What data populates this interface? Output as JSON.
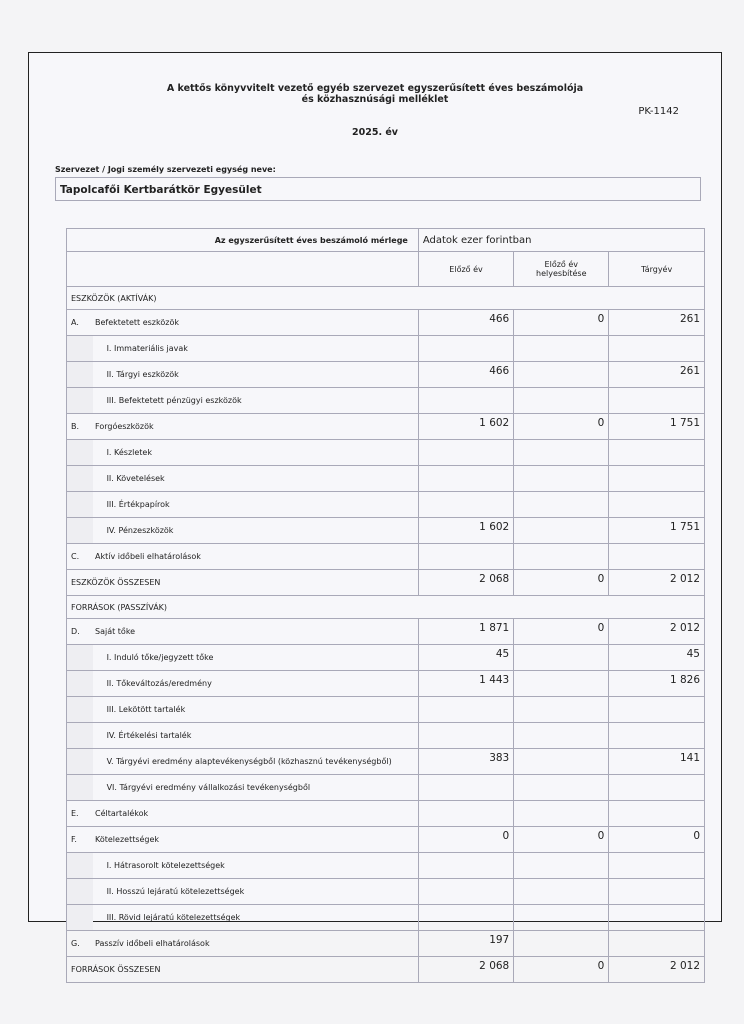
{
  "header": {
    "title_line1": "A kettős könyvvitelt vezető egyéb szervezet egyszerűsített éves beszámolója",
    "title_line2": "és közhasznúsági melléklet",
    "form_code": "PK-1142",
    "year": "2025. év"
  },
  "organization": {
    "label": "Szervezet / Jogi személy szervezeti egység neve:",
    "name": "Tapolcafői Kertbarátkör Egyesület"
  },
  "table": {
    "title": "Az egyszerűsített éves beszámoló mérlege",
    "unit": "Adatok ezer forintban",
    "columns": [
      "Előző év",
      "Előző év helyesbítése",
      "Tárgyév"
    ],
    "rows": [
      {
        "type": "section",
        "label": "ESZKÖZÖK (AKTÍVÁK)"
      },
      {
        "type": "main",
        "code": "A.",
        "label": "Befektetett eszközök",
        "prev": "466",
        "corr": "0",
        "curr": "261"
      },
      {
        "type": "sub",
        "label": "I. Immateriális javak",
        "prev": "",
        "corr": "",
        "curr": ""
      },
      {
        "type": "sub",
        "label": "II. Tárgyi eszközök",
        "prev": "466",
        "corr": "",
        "curr": "261"
      },
      {
        "type": "sub",
        "label": "III. Befektetett pénzügyi eszközök",
        "prev": "",
        "corr": "",
        "curr": ""
      },
      {
        "type": "main",
        "code": "B.",
        "label": "Forgóeszközök",
        "prev": "1 602",
        "corr": "0",
        "curr": "1 751"
      },
      {
        "type": "sub",
        "label": "I. Készletek",
        "prev": "",
        "corr": "",
        "curr": ""
      },
      {
        "type": "sub",
        "label": "II. Követelések",
        "prev": "",
        "corr": "",
        "curr": ""
      },
      {
        "type": "sub",
        "label": "III. Értékpapírok",
        "prev": "",
        "corr": "",
        "curr": ""
      },
      {
        "type": "sub",
        "label": "IV. Pénzeszközök",
        "prev": "1 602",
        "corr": "",
        "curr": "1 751"
      },
      {
        "type": "main",
        "code": "C.",
        "label": "Aktív időbeli elhatárolások",
        "prev": "",
        "corr": "",
        "curr": ""
      },
      {
        "type": "total",
        "label": "ESZKÖZÖK ÖSSZESEN",
        "prev": "2 068",
        "corr": "0",
        "curr": "2 012"
      },
      {
        "type": "section",
        "label": "FORRÁSOK (PASSZÍVÁK)"
      },
      {
        "type": "main",
        "code": "D.",
        "label": "Saját tőke",
        "prev": "1 871",
        "corr": "0",
        "curr": "2 012"
      },
      {
        "type": "sub",
        "label": "I. Induló tőke/jegyzett tőke",
        "prev": "45",
        "corr": "",
        "curr": "45"
      },
      {
        "type": "sub",
        "label": "II. Tőkeváltozás/eredmény",
        "prev": "1 443",
        "corr": "",
        "curr": "1 826"
      },
      {
        "type": "sub",
        "label": "III. Lekötött tartalék",
        "prev": "",
        "corr": "",
        "curr": ""
      },
      {
        "type": "sub",
        "label": "IV. Értékelési tartalék",
        "prev": "",
        "corr": "",
        "curr": ""
      },
      {
        "type": "sub",
        "label": "V. Tárgyévi eredmény alaptevékenységből (közhasznú tevékenységből)",
        "prev": "383",
        "corr": "",
        "curr": "141"
      },
      {
        "type": "sub",
        "label": "VI. Tárgyévi eredmény vállalkozási tevékenységből",
        "prev": "",
        "corr": "",
        "curr": ""
      },
      {
        "type": "main",
        "code": "E.",
        "label": "Céltartalékok",
        "prev": "",
        "corr": "",
        "curr": ""
      },
      {
        "type": "main",
        "code": "F.",
        "label": "Kötelezettségek",
        "prev": "0",
        "corr": "0",
        "curr": "0"
      },
      {
        "type": "sub",
        "label": "I. Hátrasorolt kötelezettségek",
        "prev": "",
        "corr": "",
        "curr": ""
      },
      {
        "type": "sub",
        "label": "II. Hosszú lejáratú kötelezettségek",
        "prev": "",
        "corr": "",
        "curr": ""
      },
      {
        "type": "sub",
        "label": "III. Rövid lejáratú kötelezettségek",
        "prev": "",
        "corr": "",
        "curr": ""
      },
      {
        "type": "main",
        "code": "G.",
        "label": "Passzív időbeli elhatárolások",
        "prev": "197",
        "corr": "",
        "curr": ""
      },
      {
        "type": "total",
        "label": "FORRÁSOK ÖSSZESEN",
        "prev": "2 068",
        "corr": "0",
        "curr": "2 012"
      }
    ]
  }
}
